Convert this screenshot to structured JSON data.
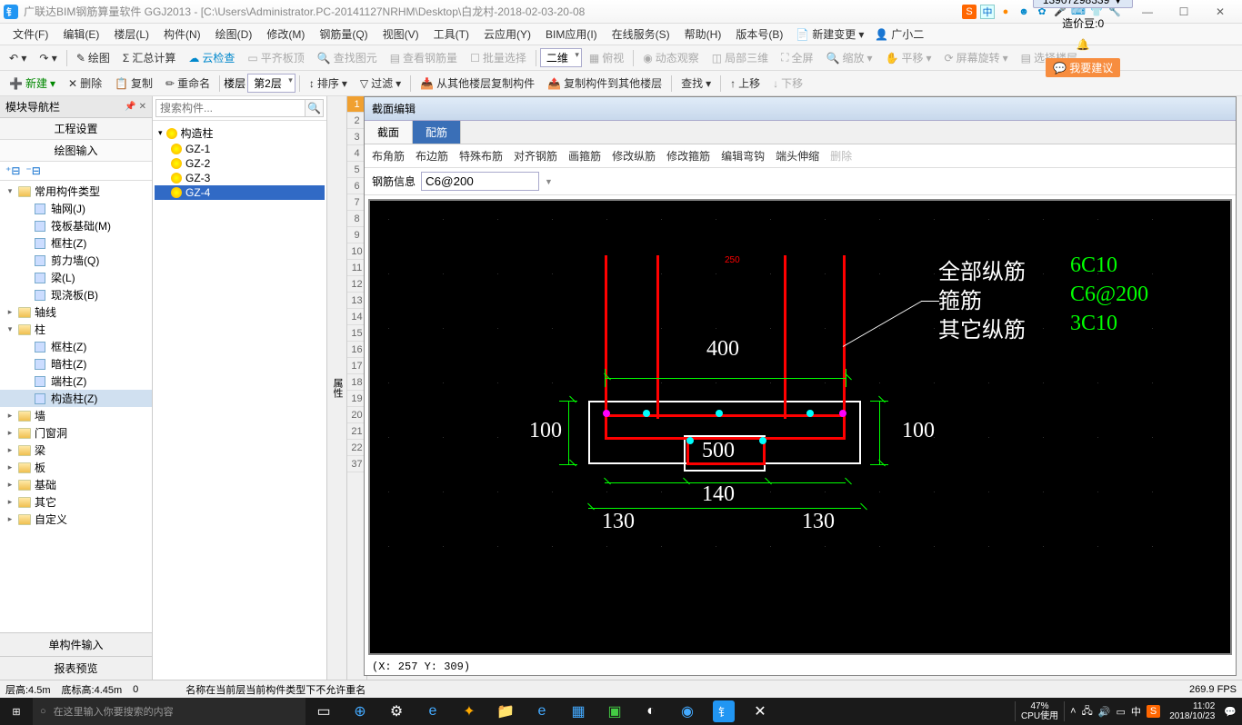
{
  "window": {
    "title": "广联达BIM钢筋算量软件 GGJ2013 - [C:\\Users\\Administrator.PC-20141127NRHM\\Desktop\\白龙村-2018-02-03-20-08",
    "phone": "13907298339",
    "cost_label": "造价豆:0",
    "suggest": "我要建议",
    "new_change": "新建变更",
    "user": "广小二"
  },
  "menus": [
    "文件(F)",
    "编辑(E)",
    "楼层(L)",
    "构件(N)",
    "绘图(D)",
    "修改(M)",
    "钢筋量(Q)",
    "视图(V)",
    "工具(T)",
    "云应用(Y)",
    "BIM应用(I)",
    "在线服务(S)",
    "帮助(H)",
    "版本号(B)"
  ],
  "toolbar1": {
    "items": [
      "绘图",
      "汇总计算",
      "云检查",
      "平齐板顶",
      "查找图元",
      "查看钢筋量",
      "批量选择"
    ],
    "view_mode": "二维",
    "more": [
      "俯视",
      "动态观察",
      "局部三维",
      "全屏",
      "缩放",
      "平移",
      "屏幕旋转",
      "选择楼层"
    ]
  },
  "toolbar2": {
    "new": "新建",
    "del": "删除",
    "copy": "复制",
    "rename": "重命名",
    "floor_lbl": "楼层",
    "floor_val": "第2层",
    "sort": "排序",
    "filter": "过滤",
    "copy_from": "从其他楼层复制构件",
    "copy_to": "复制构件到其他楼层",
    "find": "查找",
    "up": "上移",
    "down": "下移"
  },
  "left": {
    "title": "模块导航栏",
    "row1": "工程设置",
    "row2": "绘图输入",
    "tree": [
      {
        "exp": "▾",
        "ico": "folder",
        "label": "常用构件类型",
        "indent": 0
      },
      {
        "exp": "",
        "ico": "node",
        "label": "轴网(J)",
        "indent": 1
      },
      {
        "exp": "",
        "ico": "node",
        "label": "筏板基础(M)",
        "indent": 1
      },
      {
        "exp": "",
        "ico": "node",
        "label": "框柱(Z)",
        "indent": 1
      },
      {
        "exp": "",
        "ico": "node",
        "label": "剪力墙(Q)",
        "indent": 1
      },
      {
        "exp": "",
        "ico": "node",
        "label": "梁(L)",
        "indent": 1
      },
      {
        "exp": "",
        "ico": "node",
        "label": "现浇板(B)",
        "indent": 1
      },
      {
        "exp": "▸",
        "ico": "folder",
        "label": "轴线",
        "indent": 0
      },
      {
        "exp": "▾",
        "ico": "folder",
        "label": "柱",
        "indent": 0
      },
      {
        "exp": "",
        "ico": "node",
        "label": "框柱(Z)",
        "indent": 1
      },
      {
        "exp": "",
        "ico": "node",
        "label": "暗柱(Z)",
        "indent": 1
      },
      {
        "exp": "",
        "ico": "node",
        "label": "端柱(Z)",
        "indent": 1
      },
      {
        "exp": "",
        "ico": "node",
        "label": "构造柱(Z)",
        "indent": 1,
        "sel": true
      },
      {
        "exp": "▸",
        "ico": "folder",
        "label": "墙",
        "indent": 0
      },
      {
        "exp": "▸",
        "ico": "folder",
        "label": "门窗洞",
        "indent": 0
      },
      {
        "exp": "▸",
        "ico": "folder",
        "label": "梁",
        "indent": 0
      },
      {
        "exp": "▸",
        "ico": "folder",
        "label": "板",
        "indent": 0
      },
      {
        "exp": "▸",
        "ico": "folder",
        "label": "基础",
        "indent": 0
      },
      {
        "exp": "▸",
        "ico": "folder",
        "label": "其它",
        "indent": 0
      },
      {
        "exp": "▸",
        "ico": "folder",
        "label": "自定义",
        "indent": 0
      }
    ],
    "bottom1": "单构件输入",
    "bottom2": "报表预览"
  },
  "mid": {
    "placeholder": "搜索构件...",
    "root": "构造柱",
    "items": [
      "GZ-1",
      "GZ-2",
      "GZ-3",
      "GZ-4"
    ],
    "selected": 3
  },
  "right_tb": [
    "属性"
  ],
  "section": {
    "title": "截面编辑",
    "tabs": [
      "截面",
      "配筋"
    ],
    "active_tab": 1,
    "sub": [
      "布角筋",
      "布边筋",
      "特殊布筋",
      "对齐钢筋",
      "画箍筋",
      "修改纵筋",
      "修改箍筋",
      "编辑弯钩",
      "端头伸缩",
      "删除"
    ],
    "rebar_label": "钢筋信息",
    "rebar_value": "C6@200",
    "coord": "(X: 257 Y: 309)",
    "canvas": {
      "bg": "#000000",
      "dims": {
        "w400": "400",
        "h100l": "100",
        "h100r": "100",
        "w140": "140",
        "w500": "500",
        "d130l": "130",
        "d130r": "130"
      },
      "marker_250": "250",
      "labels": [
        {
          "cn": "全部纵筋",
          "val": "6C10"
        },
        {
          "cn": "箍筋",
          "val": "C6@200"
        },
        {
          "cn": "其它纵筋",
          "val": "3C10"
        }
      ],
      "colors": {
        "red": "#ff0000",
        "green": "#00ff00",
        "white": "#ffffff",
        "cyan": "#00ffff",
        "magenta": "#ff00ff"
      }
    }
  },
  "status": {
    "h": "层高:4.5m",
    "bh": "底标高:4.45m",
    "n": "0",
    "msg": "名称在当前层当前构件类型下不允许重名",
    "fps": "269.9 FPS"
  },
  "taskbar": {
    "search": "在这里输入你要搜索的内容",
    "cpu_pct": "47%",
    "cpu_lbl": "CPU使用",
    "time": "11:02",
    "date": "2018/10/23",
    "ime": "中"
  }
}
